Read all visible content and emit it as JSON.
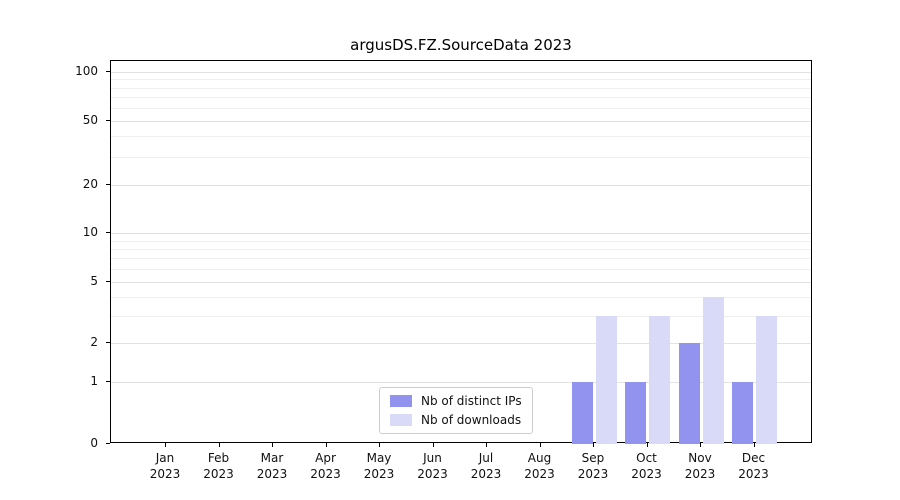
{
  "title": "argusDS.FZ.SourceData 2023",
  "chart_data": {
    "type": "bar",
    "title": "argusDS.FZ.SourceData 2023",
    "categories": [
      "Jan",
      "Feb",
      "Mar",
      "Apr",
      "May",
      "Jun",
      "Jul",
      "Aug",
      "Sep",
      "Oct",
      "Nov",
      "Dec"
    ],
    "year": "2023",
    "series": [
      {
        "name": "Nb of distinct IPs",
        "color": "#9292ef",
        "values": [
          0,
          0,
          0,
          0,
          0,
          0,
          0,
          0,
          1,
          1,
          2,
          1
        ]
      },
      {
        "name": "Nb of downloads",
        "color": "#d9d9f8",
        "values": [
          0,
          0,
          0,
          0,
          0,
          0,
          0,
          0,
          3,
          3,
          4,
          3
        ]
      }
    ],
    "yscale": "asinh",
    "yticks": [
      0,
      1,
      2,
      5,
      10,
      20,
      50,
      100
    ],
    "ylim": [
      0,
      100
    ],
    "grid": true,
    "legend_position": "lower center inside axes"
  }
}
